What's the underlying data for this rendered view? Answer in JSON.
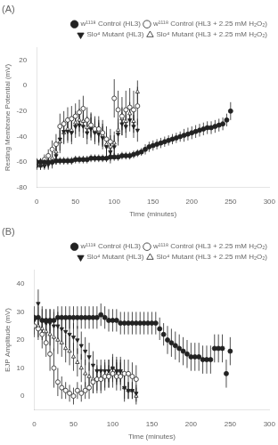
{
  "chart_data": [
    {
      "type": "scatter",
      "title": "(A)",
      "x_label": "Time (minutes)",
      "y_label": "Resting Membrane Potential (mV)",
      "xlim": [
        0,
        300
      ],
      "ylim": [
        -80,
        30
      ],
      "xticks": [
        0,
        50,
        100,
        150,
        200,
        250,
        300
      ],
      "yticks": [
        -80,
        -60,
        -40,
        -20,
        0,
        20
      ],
      "grid": false,
      "legend": "upper right",
      "series": [
        {
          "name": "w¹¹¹⁸ Control (HL3)",
          "marker": "filled_circle",
          "color": "#222222",
          "x": [
            0,
            5,
            10,
            15,
            20,
            25,
            30,
            35,
            40,
            45,
            50,
            55,
            60,
            65,
            70,
            75,
            80,
            85,
            90,
            95,
            100,
            105,
            110,
            115,
            120,
            125,
            130,
            135,
            140,
            145,
            150,
            155,
            160,
            165,
            170,
            175,
            180,
            185,
            190,
            195,
            200,
            205,
            210,
            215,
            220,
            225,
            230,
            235,
            240,
            245,
            250
          ],
          "values": [
            -60,
            -60,
            -60,
            -60,
            -60,
            -59,
            -59,
            -59,
            -59,
            -59,
            -58,
            -58,
            -58,
            -58,
            -57,
            -57,
            -57,
            -57,
            -57,
            -56,
            -56,
            -56,
            -55,
            -55,
            -55,
            -54,
            -53,
            -52,
            -50,
            -48,
            -47,
            -46,
            -45,
            -44,
            -43,
            -42,
            -41,
            -40,
            -39,
            -38,
            -37,
            -36,
            -35,
            -34,
            -33,
            -33,
            -32,
            -31,
            -30,
            -27,
            -20
          ],
          "yerr": [
            3,
            3,
            3,
            3,
            3,
            3,
            3,
            3,
            3,
            3,
            3,
            3,
            3,
            3,
            3,
            3,
            3,
            3,
            3,
            3,
            3,
            3,
            3,
            3,
            3,
            3,
            3,
            3,
            4,
            4,
            4,
            4,
            4,
            4,
            4,
            4,
            4,
            4,
            5,
            5,
            5,
            5,
            5,
            5,
            5,
            5,
            5,
            5,
            5,
            5,
            7
          ]
        },
        {
          "name": "w¹¹¹⁸ Control (HL3 + 2.25 mM H₂O₂)",
          "marker": "open_circle",
          "color": "#222222",
          "x": [
            0,
            5,
            10,
            15,
            20,
            25,
            30,
            35,
            40,
            45,
            50,
            55,
            60,
            65,
            70,
            75,
            80,
            85,
            90,
            95,
            100,
            105,
            110,
            115,
            120,
            125,
            130
          ],
          "values": [
            -60,
            -60,
            -58,
            -55,
            -50,
            -46,
            -32,
            -30,
            -27,
            -26,
            -24,
            -21,
            -18,
            -27,
            -31,
            -34,
            -34,
            -37,
            -42,
            -44,
            -10,
            -19,
            -24,
            -19,
            -17,
            -19,
            -16
          ],
          "yerr": [
            3,
            3,
            4,
            5,
            7,
            8,
            10,
            10,
            10,
            10,
            10,
            10,
            10,
            10,
            10,
            10,
            10,
            10,
            10,
            10,
            15,
            15,
            15,
            15,
            15,
            15,
            15
          ]
        },
        {
          "name": "Slo⁴ Mutant (HL3)",
          "marker": "filled_triangle_down",
          "color": "#222222",
          "x": [
            0,
            5,
            10,
            15,
            20,
            25,
            30,
            35,
            40,
            45,
            50,
            55,
            60,
            65,
            70,
            75,
            80,
            85,
            90,
            95,
            100,
            105,
            110,
            115,
            120,
            125,
            130
          ],
          "values": [
            -63,
            -63,
            -63,
            -62,
            -60,
            -55,
            -42,
            -36,
            -36,
            -37,
            -32,
            -31,
            -32,
            -37,
            -34,
            -37,
            -38,
            -41,
            -48,
            -52,
            -48,
            -38,
            -30,
            -32,
            -27,
            -32,
            -35
          ],
          "yerr": [
            3,
            3,
            3,
            4,
            5,
            7,
            9,
            9,
            9,
            9,
            9,
            9,
            9,
            9,
            9,
            9,
            9,
            9,
            9,
            9,
            9,
            9,
            9,
            9,
            9,
            9,
            9
          ]
        },
        {
          "name": "Slo⁴ Mutant (HL3 + 2.25 mM H₂O₂)",
          "marker": "open_triangle_up",
          "color": "#222222",
          "x": [
            0,
            5,
            10,
            15,
            20,
            25,
            30,
            35,
            40,
            45,
            50,
            55,
            60,
            65,
            70,
            75,
            80,
            85,
            90,
            95,
            100,
            105,
            110,
            115,
            120,
            125,
            130
          ],
          "values": [
            -63,
            -63,
            -62,
            -60,
            -57,
            -52,
            -44,
            -37,
            -34,
            -35,
            -29,
            -27,
            -28,
            -33,
            -31,
            -35,
            -36,
            -39,
            -46,
            -48,
            -45,
            -35,
            -26,
            -28,
            -22,
            -28,
            -5
          ],
          "yerr": [
            3,
            3,
            3,
            5,
            6,
            8,
            9,
            9,
            9,
            9,
            9,
            9,
            9,
            9,
            9,
            9,
            9,
            9,
            9,
            9,
            9,
            9,
            9,
            9,
            9,
            9,
            9
          ]
        }
      ]
    },
    {
      "type": "scatter",
      "title": "(B)",
      "x_label": "Time (minutes)",
      "y_label": "EJP Amplitude (mV)",
      "xlim": [
        0,
        300
      ],
      "ylim": [
        -5,
        45
      ],
      "xticks": [
        0,
        50,
        100,
        150,
        200,
        250,
        300
      ],
      "yticks": [
        0,
        10,
        20,
        30,
        40
      ],
      "grid": false,
      "legend": "upper right",
      "series": [
        {
          "name": "w¹¹¹⁸ Control (HL3)",
          "marker": "filled_circle",
          "color": "#222222",
          "x": [
            0,
            5,
            10,
            15,
            20,
            25,
            30,
            35,
            40,
            45,
            50,
            55,
            60,
            65,
            70,
            75,
            80,
            85,
            90,
            95,
            100,
            105,
            110,
            115,
            120,
            125,
            130,
            135,
            140,
            145,
            150,
            155,
            160,
            165,
            170,
            175,
            180,
            185,
            190,
            195,
            200,
            205,
            210,
            215,
            220,
            225,
            230,
            235,
            240,
            245,
            250
          ],
          "values": [
            28,
            28,
            27,
            27,
            27,
            27,
            28,
            28,
            28,
            28,
            28,
            28,
            28,
            28,
            28,
            28,
            28,
            29,
            28,
            27,
            27,
            27,
            26,
            26,
            26,
            26,
            26,
            26,
            26,
            26,
            26,
            26,
            24,
            22,
            20,
            19,
            18,
            17,
            16,
            15,
            14,
            14,
            14,
            13,
            13,
            13,
            17,
            17,
            17,
            8,
            16
          ],
          "yerr": [
            4,
            4,
            4,
            4,
            4,
            4,
            4,
            4,
            4,
            4,
            4,
            4,
            4,
            4,
            4,
            4,
            4,
            4,
            4,
            4,
            4,
            4,
            4,
            4,
            4,
            4,
            4,
            4,
            4,
            4,
            4,
            4,
            4,
            4,
            5,
            5,
            5,
            5,
            5,
            5,
            5,
            5,
            5,
            5,
            5,
            5,
            5,
            5,
            5,
            5,
            5
          ]
        },
        {
          "name": "w¹¹¹⁸ Control (HL3 + 2.25 mM H₂O₂)",
          "marker": "open_circle",
          "color": "#222222",
          "x": [
            0,
            5,
            10,
            15,
            20,
            25,
            30,
            35,
            40,
            45,
            50,
            55,
            60,
            65,
            70,
            75,
            80,
            85,
            90,
            95,
            100,
            105,
            110,
            115,
            120,
            125,
            130
          ],
          "values": [
            25,
            24,
            22,
            19,
            15,
            10,
            5,
            3,
            2,
            1,
            0,
            2,
            1,
            2,
            3,
            5,
            6,
            6,
            7,
            7,
            8,
            7,
            7,
            8,
            8,
            7,
            6
          ],
          "yerr": [
            4,
            4,
            5,
            5,
            6,
            7,
            5,
            4,
            3,
            3,
            3,
            3,
            3,
            3,
            4,
            4,
            4,
            4,
            4,
            4,
            5,
            5,
            5,
            5,
            5,
            5,
            5
          ]
        },
        {
          "name": "Slo⁴ Mutant (HL3)",
          "marker": "filled_triangle_down",
          "color": "#222222",
          "x": [
            0,
            5,
            10,
            15,
            20,
            25,
            30,
            35,
            40,
            45,
            50,
            55,
            60,
            65,
            70,
            75,
            80,
            85,
            90,
            95,
            100,
            105,
            110,
            115,
            120,
            125,
            130
          ],
          "values": [
            27,
            33,
            27,
            26,
            26,
            25,
            25,
            24,
            23,
            22,
            21,
            20,
            18,
            16,
            14,
            11,
            9,
            9,
            9,
            9,
            10,
            9,
            9,
            3,
            2,
            2,
            1
          ],
          "yerr": [
            5,
            5,
            5,
            5,
            5,
            5,
            5,
            5,
            5,
            5,
            5,
            5,
            5,
            5,
            5,
            5,
            4,
            4,
            4,
            4,
            4,
            4,
            4,
            4,
            3,
            3,
            3
          ]
        },
        {
          "name": "Slo⁴ Mutant (HL3 + 2.25 mM H₂O₂)",
          "marker": "open_triangle_up",
          "color": "#222222",
          "x": [
            0,
            5,
            10,
            15,
            20,
            25,
            30,
            35,
            40,
            45,
            50,
            55,
            60,
            65,
            70,
            75,
            80,
            85,
            90,
            95,
            100,
            105,
            110,
            115,
            120,
            125,
            130
          ],
          "values": [
            25,
            25,
            24,
            23,
            22,
            21,
            20,
            19,
            17,
            16,
            14,
            12,
            10,
            8,
            7,
            6,
            6,
            6,
            7,
            8,
            10,
            9,
            9,
            3,
            2,
            2,
            0
          ],
          "yerr": [
            4,
            4,
            4,
            4,
            4,
            5,
            5,
            5,
            5,
            5,
            5,
            5,
            5,
            5,
            5,
            5,
            5,
            5,
            5,
            5,
            5,
            5,
            5,
            5,
            3,
            3,
            3
          ]
        }
      ]
    }
  ]
}
